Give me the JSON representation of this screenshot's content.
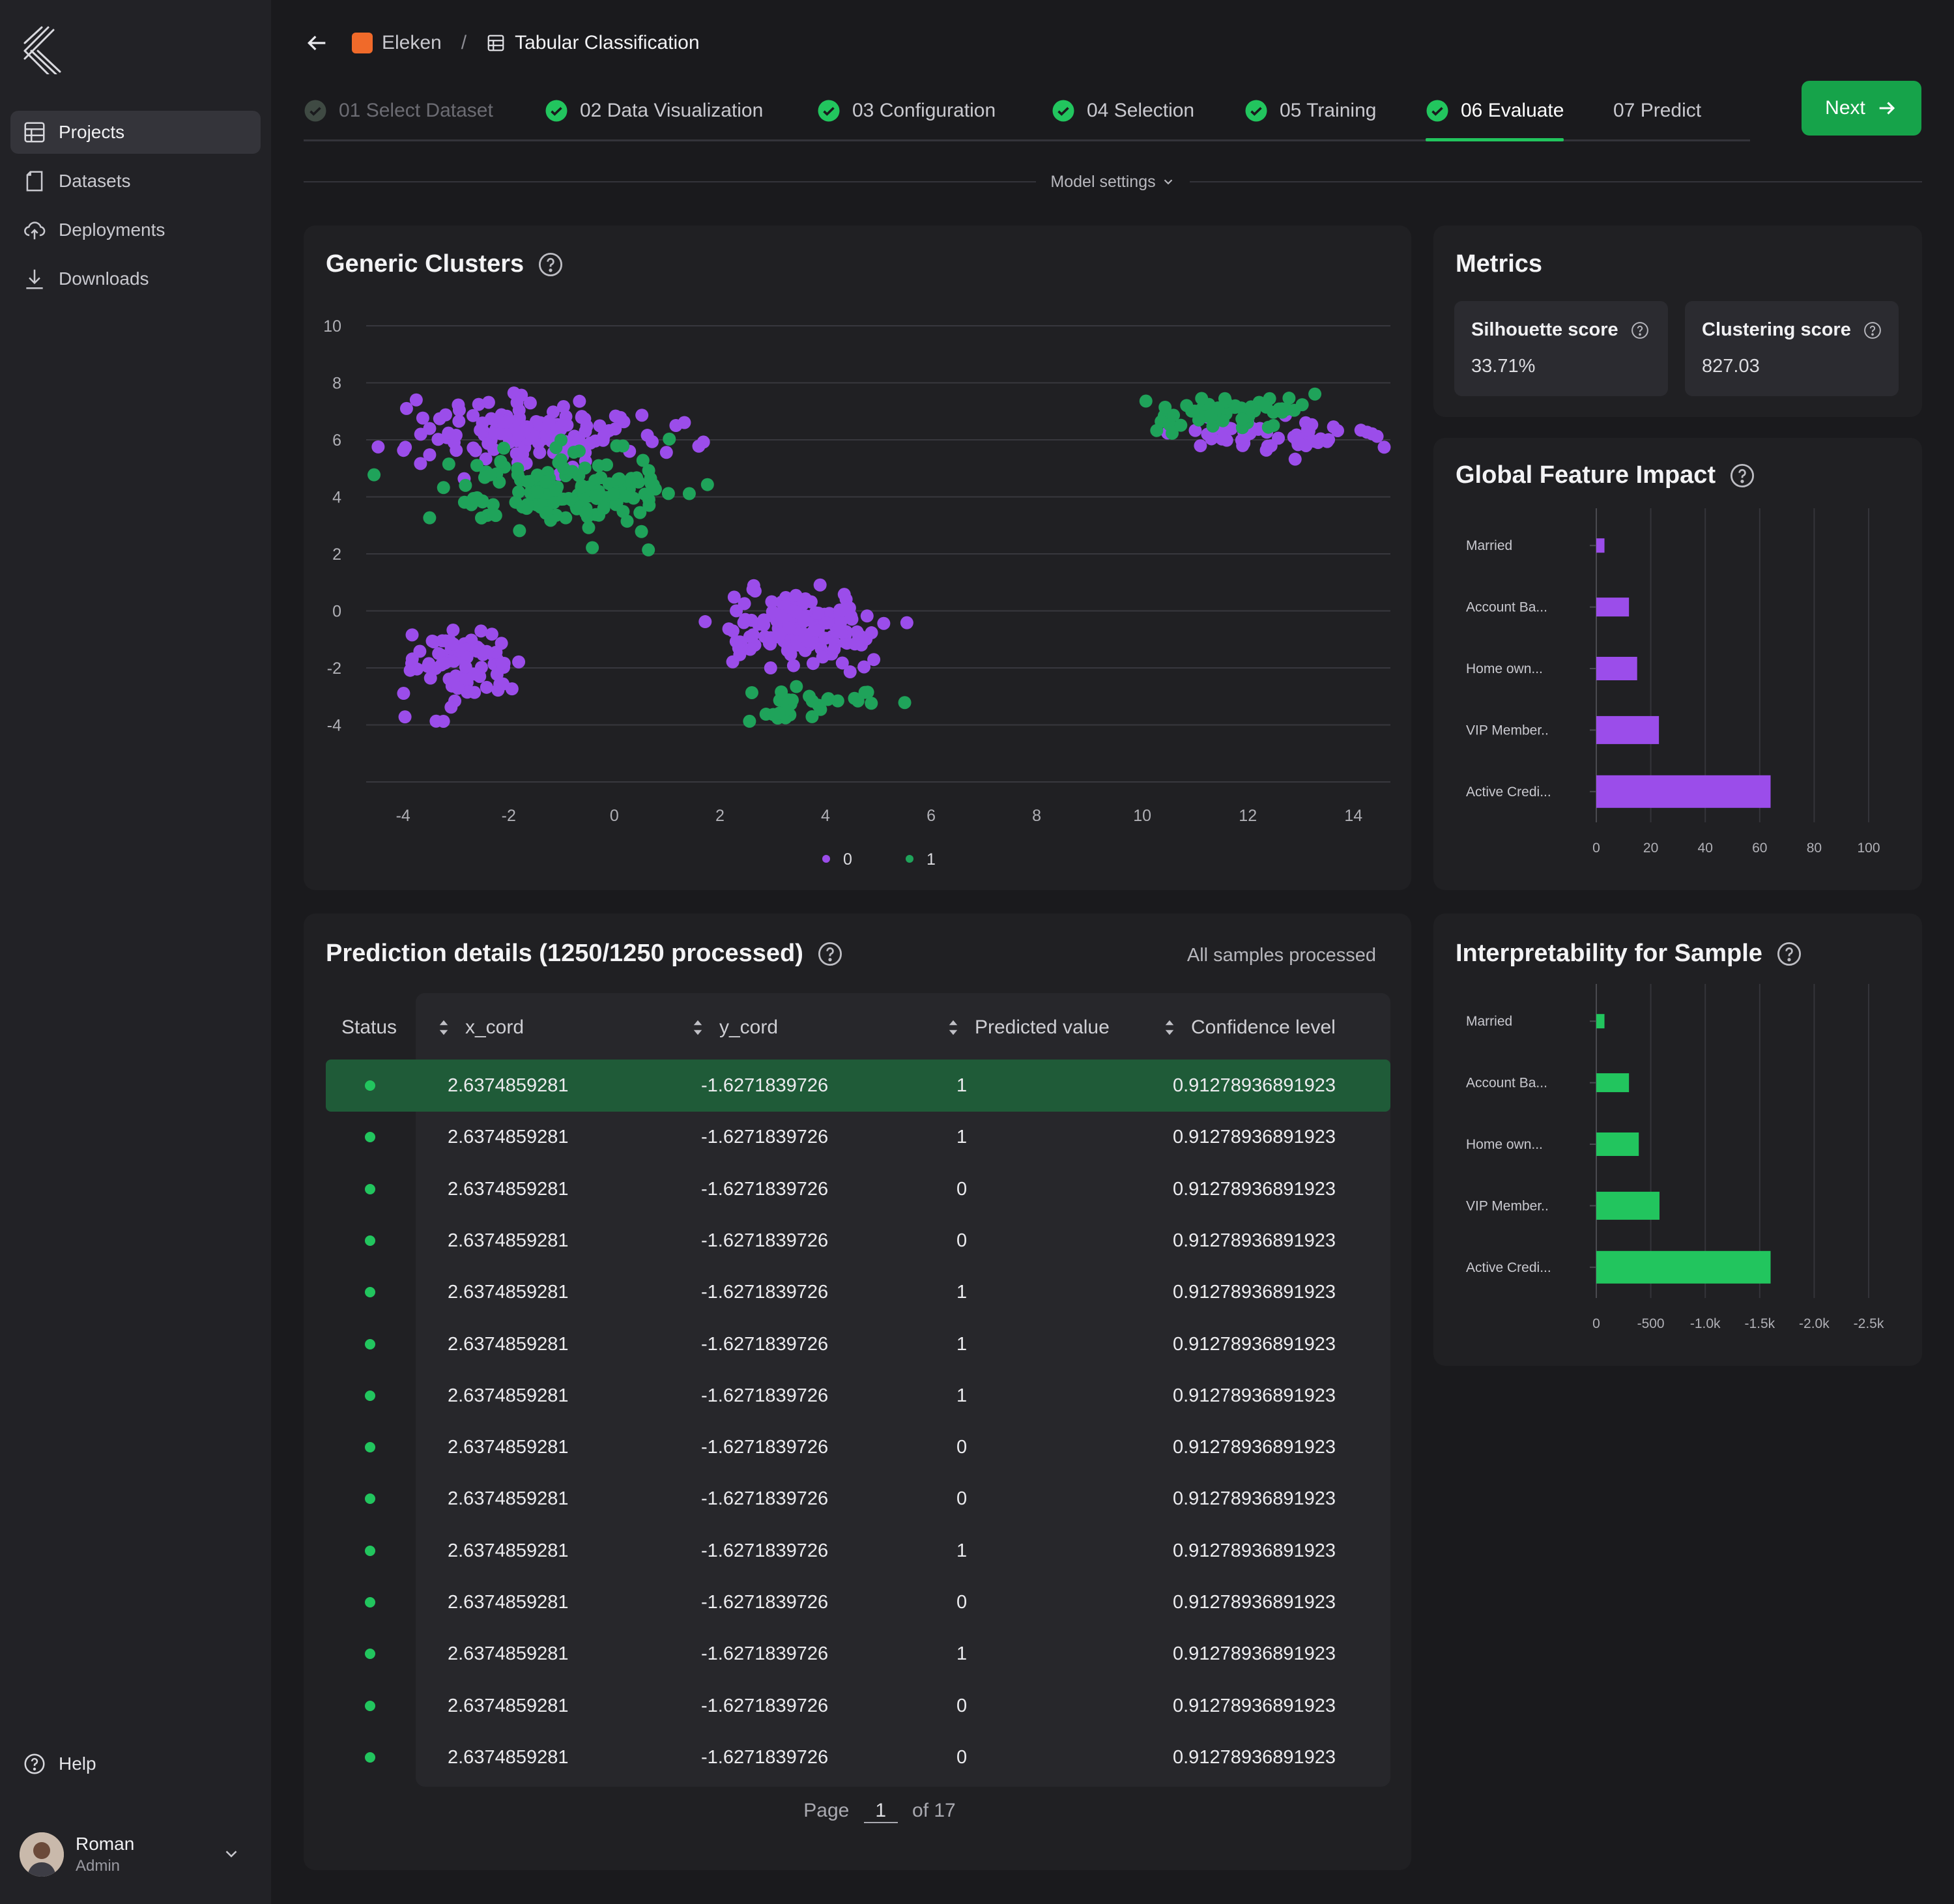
{
  "app": {
    "logo": "app-logo"
  },
  "sidebar": {
    "items": [
      {
        "label": "Projects",
        "icon": "grid-icon",
        "active": true
      },
      {
        "label": "Datasets",
        "icon": "file-icon"
      },
      {
        "label": "Deployments",
        "icon": "cloud-upload-icon"
      },
      {
        "label": "Downloads",
        "icon": "download-icon"
      }
    ],
    "help": "Help",
    "user": {
      "name": "Roman",
      "role": "Admin"
    }
  },
  "breadcrumb": {
    "project": "Eleken",
    "separator": "/",
    "current": "Tabular Classification"
  },
  "steps": [
    {
      "label": "01 Select Dataset",
      "state": "done-dim"
    },
    {
      "label": "02 Data Visualization",
      "state": "done"
    },
    {
      "label": "03 Configuration",
      "state": "done"
    },
    {
      "label": "04 Selection",
      "state": "done"
    },
    {
      "label": "05 Training",
      "state": "done"
    },
    {
      "label": "06 Evaluate",
      "state": "active"
    },
    {
      "label": "07 Predict",
      "state": "todo"
    }
  ],
  "next_label": "Next",
  "model_settings": "Model settings",
  "colors": {
    "accent": "#22c55e",
    "purple": "#9b4dea",
    "green": "#1fa35a",
    "bg": "#1a1a1d",
    "card": "#202023"
  },
  "clusters": {
    "title": "Generic Clusters"
  },
  "metrics": {
    "title": "Metrics",
    "silhouette": {
      "label": "Silhouette score",
      "value": "33.71%"
    },
    "clustering": {
      "label": "Clustering score",
      "value": "827.03"
    }
  },
  "feature_impact": {
    "title": "Global Feature Impact"
  },
  "interpretability": {
    "title": "Interpretability for Sample"
  },
  "predictions": {
    "title": "Prediction details (1250/1250 processed)",
    "status_text": "All samples processed",
    "columns": [
      "Status",
      "x_cord",
      "y_cord",
      "Predicted value",
      "Confidence level"
    ],
    "rows": [
      {
        "x": "2.6374859281",
        "y": "-1.6271839726",
        "pred": "1",
        "conf": "0.91278936891923"
      },
      {
        "x": "2.6374859281",
        "y": "-1.6271839726",
        "pred": "1",
        "conf": "0.91278936891923"
      },
      {
        "x": "2.6374859281",
        "y": "-1.6271839726",
        "pred": "0",
        "conf": "0.91278936891923"
      },
      {
        "x": "2.6374859281",
        "y": "-1.6271839726",
        "pred": "0",
        "conf": "0.91278936891923"
      },
      {
        "x": "2.6374859281",
        "y": "-1.6271839726",
        "pred": "1",
        "conf": "0.91278936891923"
      },
      {
        "x": "2.6374859281",
        "y": "-1.6271839726",
        "pred": "1",
        "conf": "0.91278936891923"
      },
      {
        "x": "2.6374859281",
        "y": "-1.6271839726",
        "pred": "1",
        "conf": "0.91278936891923"
      },
      {
        "x": "2.6374859281",
        "y": "-1.6271839726",
        "pred": "0",
        "conf": "0.91278936891923"
      },
      {
        "x": "2.6374859281",
        "y": "-1.6271839726",
        "pred": "0",
        "conf": "0.91278936891923"
      },
      {
        "x": "2.6374859281",
        "y": "-1.6271839726",
        "pred": "1",
        "conf": "0.91278936891923"
      },
      {
        "x": "2.6374859281",
        "y": "-1.6271839726",
        "pred": "0",
        "conf": "0.91278936891923"
      },
      {
        "x": "2.6374859281",
        "y": "-1.6271839726",
        "pred": "1",
        "conf": "0.91278936891923"
      },
      {
        "x": "2.6374859281",
        "y": "-1.6271839726",
        "pred": "0",
        "conf": "0.91278936891923"
      },
      {
        "x": "2.6374859281",
        "y": "-1.6271839726",
        "pred": "0",
        "conf": "0.91278936891923"
      }
    ],
    "pager": {
      "prefix": "Page",
      "page": "1",
      "suffix": "of 17"
    }
  },
  "chart_data": [
    {
      "type": "scatter",
      "title": "Generic Clusters",
      "xlim": [
        -4.7,
        14.7
      ],
      "ylim": [
        -6,
        10
      ],
      "xticks": [
        -4,
        -2,
        0,
        2,
        4,
        6,
        8,
        10,
        12,
        14
      ],
      "yticks": [
        10,
        8,
        6,
        4,
        2,
        0,
        -2,
        -4
      ],
      "grid": true,
      "legend_position": "bottom-center",
      "series": [
        {
          "name": "0",
          "color": "#9b4dea",
          "clusters": [
            {
              "cx": -1.5,
              "cy": 6.3,
              "sx": 1.5,
              "sy": 0.8,
              "n": 150
            },
            {
              "cx": -2.9,
              "cy": -1.9,
              "sx": 0.75,
              "sy": 0.85,
              "n": 80
            },
            {
              "cx": 3.5,
              "cy": -0.7,
              "sx": 1.0,
              "sy": 0.9,
              "n": 130
            },
            {
              "cx": 12.2,
              "cy": 6.2,
              "sx": 1.3,
              "sy": 0.35,
              "n": 55
            }
          ]
        },
        {
          "name": "1",
          "color": "#1fa35a",
          "clusters": [
            {
              "cx": -0.9,
              "cy": 4.3,
              "sx": 1.4,
              "sy": 0.9,
              "n": 160
            },
            {
              "cx": 3.7,
              "cy": -3.2,
              "sx": 0.75,
              "sy": 0.45,
              "n": 30
            },
            {
              "cx": 11.6,
              "cy": 7.0,
              "sx": 1.2,
              "sy": 0.45,
              "n": 55
            }
          ]
        }
      ]
    },
    {
      "type": "bar",
      "orientation": "horizontal",
      "title": "Global Feature Impact",
      "categories": [
        "Married",
        "Account Ba...",
        "Home own...",
        "VIP Member..",
        "Active Credi..."
      ],
      "values": [
        3,
        12,
        15,
        23,
        64
      ],
      "xlim": [
        0,
        100
      ],
      "xticks": [
        "0",
        "20",
        "40",
        "60",
        "80",
        "100"
      ],
      "color": "#9b4dea"
    },
    {
      "type": "bar",
      "orientation": "horizontal",
      "title": "Interpretability for Sample",
      "categories": [
        "Married",
        "Account Ba...",
        "Home own...",
        "VIP Member..",
        "Active Credi..."
      ],
      "values": [
        -75,
        -300,
        -390,
        -580,
        -1600
      ],
      "xlim": [
        0,
        -2500
      ],
      "xticks": [
        "0",
        "-500",
        "-1.0k",
        "-1.5k",
        "-2.0k",
        "-2.5k"
      ],
      "color": "#22c55e"
    }
  ]
}
